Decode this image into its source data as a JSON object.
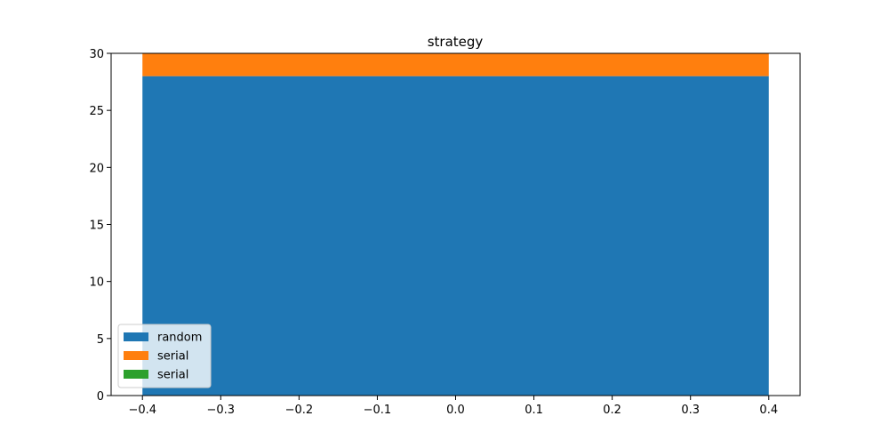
{
  "chart_data": {
    "type": "bar",
    "stacked": true,
    "title": "strategy",
    "xlabel": "",
    "ylabel": "",
    "xlim": [
      -0.44,
      0.44
    ],
    "ylim": [
      0,
      30
    ],
    "x_ticks": [
      -0.4,
      -0.3,
      -0.2,
      -0.1,
      0.0,
      0.1,
      0.2,
      0.3,
      0.4
    ],
    "x_tick_labels": [
      "−0.4",
      "−0.3",
      "−0.2",
      "−0.1",
      "0.0",
      "0.1",
      "0.2",
      "0.3",
      "0.4"
    ],
    "y_ticks": [
      0,
      5,
      10,
      15,
      20,
      25,
      30
    ],
    "y_tick_labels": [
      "0",
      "5",
      "10",
      "15",
      "20",
      "25",
      "30"
    ],
    "bar": {
      "x": 0,
      "width": 0.8
    },
    "series": [
      {
        "name": "random",
        "value": 28,
        "color": "#1f77b4"
      },
      {
        "name": "serial",
        "value": 2,
        "color": "#ff7f0e"
      },
      {
        "name": "serial",
        "value": 0,
        "color": "#2ca02c"
      }
    ],
    "grid": false,
    "legend_position": "lower-left"
  }
}
